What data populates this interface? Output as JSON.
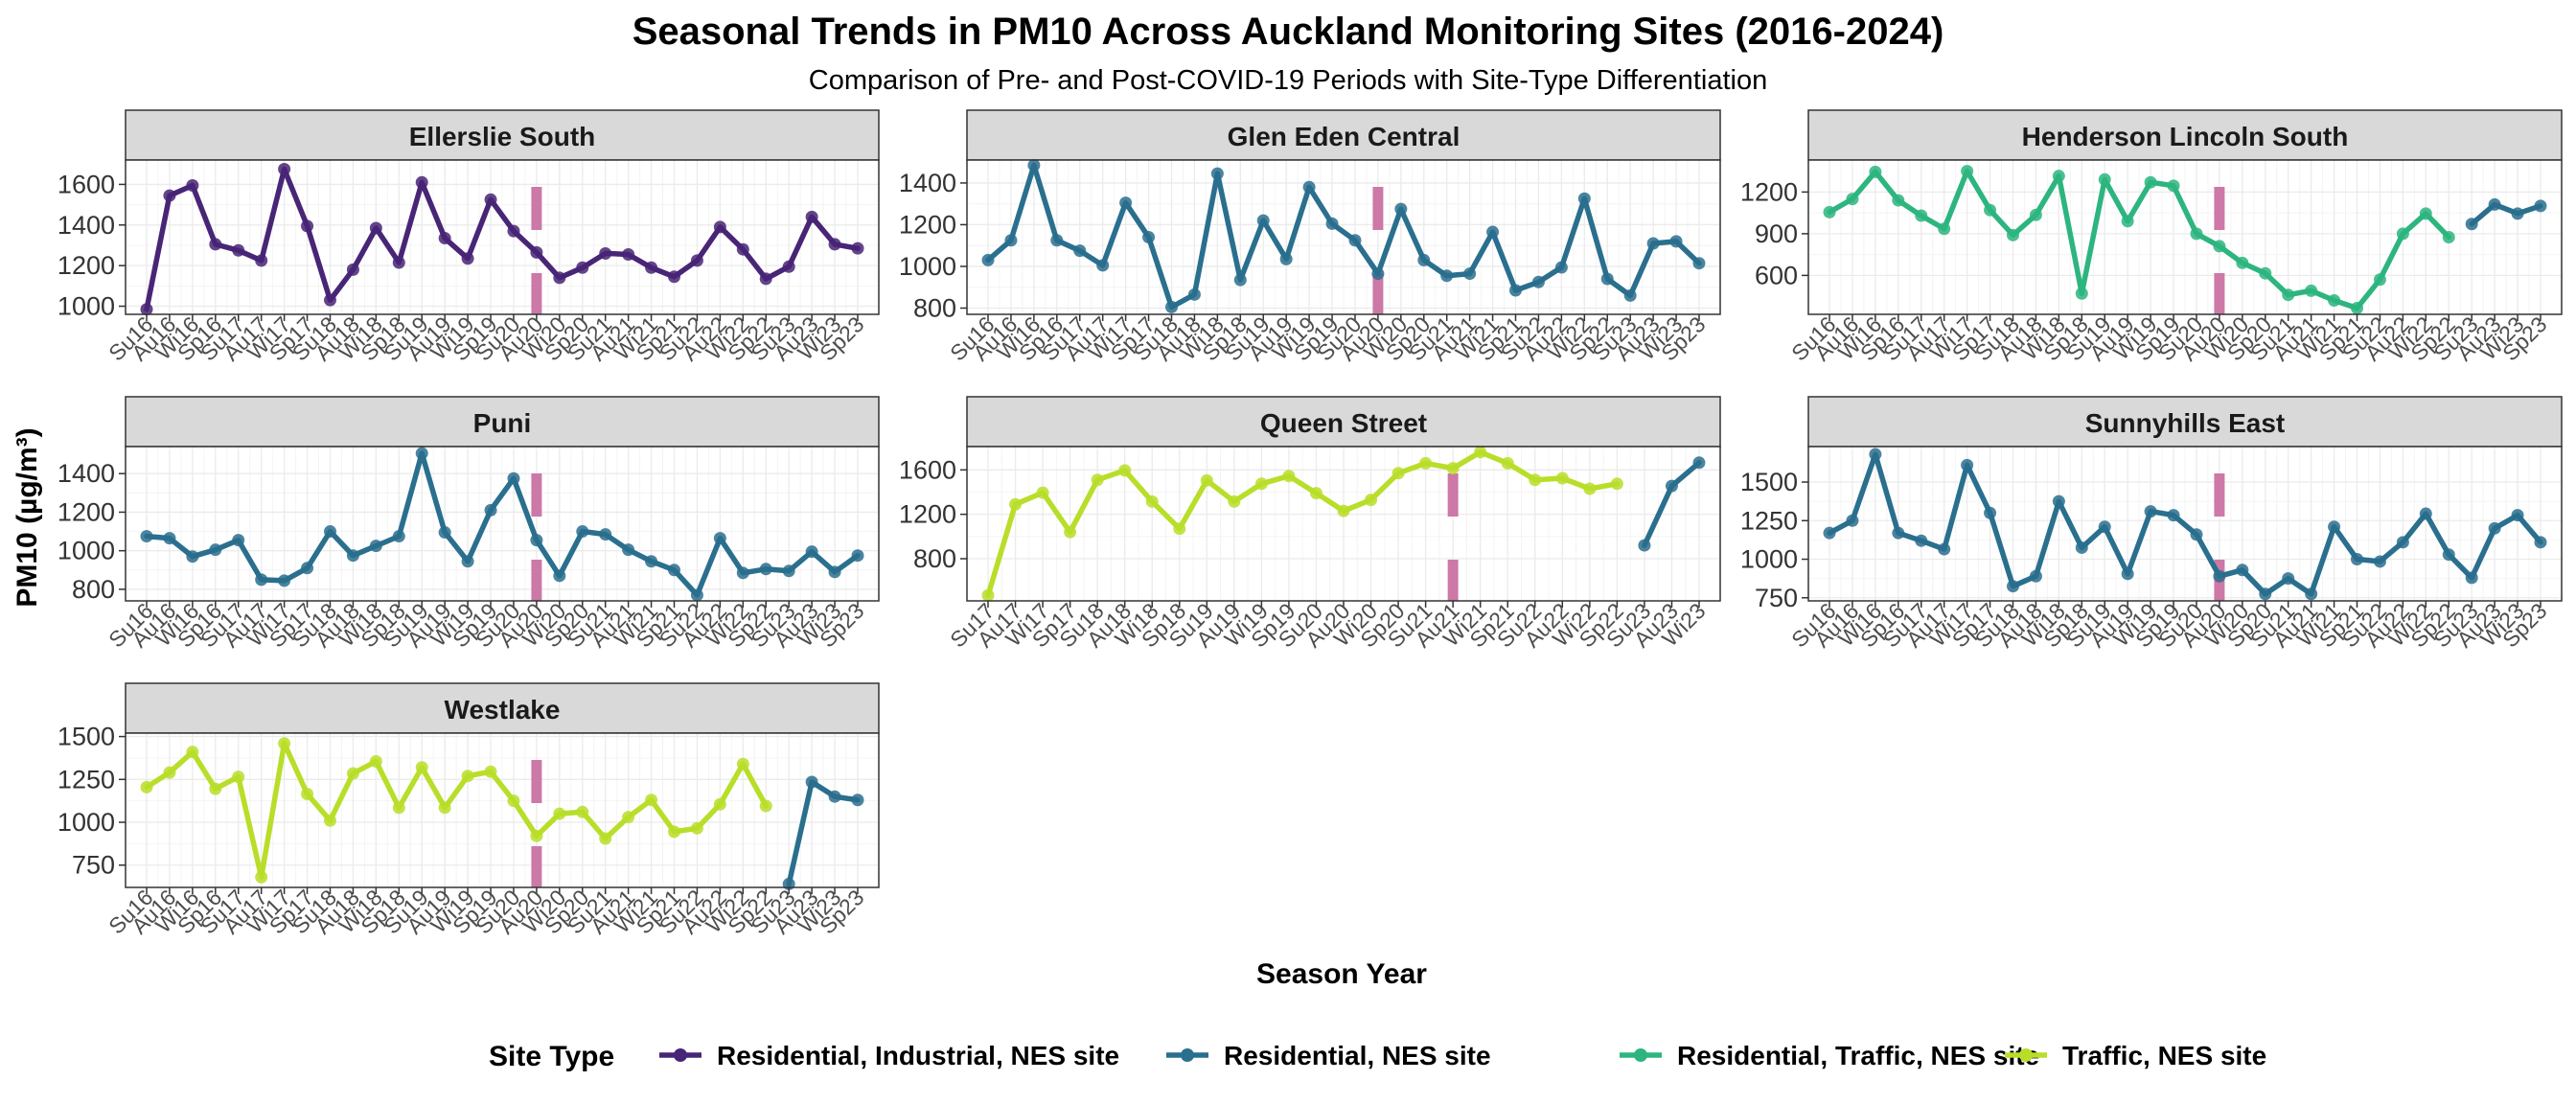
{
  "title": "Seasonal Trends in  PM10  Across Auckland Monitoring Sites (2016-2024)",
  "subtitle": "Comparison of Pre- and Post-COVID-19 Periods with Site-Type Differentiation",
  "xlabel": "Season Year",
  "ylabel": "PM10 (µg/m³)",
  "legend": {
    "title": "Site Type",
    "position": "bottom",
    "entries": [
      {
        "label": "Residential, Industrial, NES site",
        "color": "#482576"
      },
      {
        "label": "Residential, NES site",
        "color": "#2A6F8E"
      },
      {
        "label": "Residential, Traffic, NES site",
        "color": "#2DB57F"
      },
      {
        "label": "Traffic, NES site",
        "color": "#B8DE29"
      }
    ]
  },
  "colors": {
    "Residential, Industrial, NES site": "#482576",
    "Residential, NES site": "#2A6F8E",
    "Residential, Traffic, NES site": "#2DB57F",
    "Traffic, NES site": "#B8DE29",
    "covid_marker": "#CC79A7",
    "strip_bg": "#D9D9D9",
    "grid": "#EBEBEB"
  },
  "chart_data": [
    {
      "type": "line",
      "panel": "Ellerslie South",
      "categories": [
        "Su16",
        "Au16",
        "Wi16",
        "Sp16",
        "Su17",
        "Au17",
        "Wi17",
        "Sp17",
        "Su18",
        "Au18",
        "Wi18",
        "Sp18",
        "Su19",
        "Au19",
        "Wi19",
        "Sp19",
        "Su20",
        "Au20",
        "Wi20",
        "Sp20",
        "Su21",
        "Au21",
        "Wi21",
        "Sp21",
        "Su22",
        "Au22",
        "Wi22",
        "Sp22",
        "Su23",
        "Au23",
        "Wi23",
        "Sp23"
      ],
      "yticks": [
        1000,
        1200,
        1400,
        1600
      ],
      "ylim": [
        960,
        1720
      ],
      "covid_marker": "Au20",
      "series": [
        {
          "site_type": "Residential, Industrial, NES site",
          "values": [
            985,
            1545,
            1595,
            1305,
            1275,
            1225,
            1675,
            1395,
            1030,
            1180,
            1385,
            1215,
            1610,
            1335,
            1235,
            1525,
            1370,
            1265,
            1140,
            1190,
            1260,
            1255,
            1190,
            1145,
            1225,
            1390,
            1280,
            1135,
            1195,
            1440,
            1305,
            1285
          ]
        }
      ]
    },
    {
      "type": "line",
      "panel": "Glen Eden Central",
      "categories": [
        "Su16",
        "Au16",
        "Wi16",
        "Sp16",
        "Su17",
        "Au17",
        "Wi17",
        "Sp17",
        "Su18",
        "Au18",
        "Wi18",
        "Sp18",
        "Su19",
        "Au19",
        "Wi19",
        "Sp19",
        "Su20",
        "Au20",
        "Wi20",
        "Sp20",
        "Su21",
        "Au21",
        "Wi21",
        "Sp21",
        "Su22",
        "Au22",
        "Wi22",
        "Sp22",
        "Su23",
        "Au23",
        "Wi23",
        "Sp23"
      ],
      "yticks": [
        800,
        1000,
        1200,
        1400
      ],
      "ylim": [
        770,
        1510
      ],
      "covid_marker": "Au20",
      "series": [
        {
          "site_type": "Residential, NES site",
          "values": [
            1030,
            1125,
            1485,
            1125,
            1075,
            1005,
            1305,
            1140,
            805,
            865,
            1445,
            935,
            1220,
            1035,
            1380,
            1205,
            1125,
            965,
            1275,
            1030,
            955,
            965,
            1165,
            885,
            925,
            995,
            1325,
            940,
            860,
            1110,
            1120,
            1015
          ]
        }
      ]
    },
    {
      "type": "line",
      "panel": "Henderson Lincoln South",
      "categories": [
        "Su16",
        "Au16",
        "Wi16",
        "Sp16",
        "Su17",
        "Au17",
        "Wi17",
        "Sp17",
        "Su18",
        "Au18",
        "Wi18",
        "Sp18",
        "Su19",
        "Au19",
        "Wi19",
        "Sp19",
        "Su20",
        "Au20",
        "Wi20",
        "Sp20",
        "Su21",
        "Au21",
        "Wi21",
        "Sp21",
        "Su22",
        "Au22",
        "Wi22",
        "Sp22",
        "Su23",
        "Au23",
        "Wi23",
        "Sp23"
      ],
      "yticks": [
        600,
        900,
        1200
      ],
      "ylim": [
        320,
        1430
      ],
      "covid_marker": "Au20",
      "series": [
        {
          "site_type": "Residential, Traffic, NES site",
          "values": [
            1055,
            1150,
            1345,
            1140,
            1030,
            935,
            1350,
            1070,
            890,
            1035,
            1315,
            470,
            1290,
            990,
            1270,
            1245,
            900,
            810,
            690,
            615,
            460,
            490,
            420,
            365,
            570,
            900,
            1045,
            875,
            null,
            null,
            null,
            null
          ]
        },
        {
          "site_type": "Residential, NES site",
          "values": [
            null,
            null,
            null,
            null,
            null,
            null,
            null,
            null,
            null,
            null,
            null,
            null,
            null,
            null,
            null,
            null,
            null,
            null,
            null,
            null,
            null,
            null,
            null,
            null,
            null,
            null,
            null,
            null,
            970,
            1110,
            1045,
            1100
          ]
        }
      ]
    },
    {
      "type": "line",
      "panel": "Puni",
      "categories": [
        "Su16",
        "Au16",
        "Wi16",
        "Sp16",
        "Su17",
        "Au17",
        "Wi17",
        "Sp17",
        "Su18",
        "Au18",
        "Wi18",
        "Sp18",
        "Su19",
        "Au19",
        "Wi19",
        "Sp19",
        "Su20",
        "Au20",
        "Wi20",
        "Sp20",
        "Su21",
        "Au21",
        "Wi21",
        "Sp21",
        "Su22",
        "Au22",
        "Wi22",
        "Sp22",
        "Su23",
        "Au23",
        "Wi23",
        "Sp23"
      ],
      "yticks": [
        800,
        1000,
        1200,
        1400
      ],
      "ylim": [
        740,
        1540
      ],
      "covid_marker": "Au20",
      "series": [
        {
          "site_type": "Residential, NES site",
          "values": [
            1075,
            1065,
            970,
            1005,
            1055,
            850,
            845,
            910,
            1100,
            975,
            1025,
            1075,
            1505,
            1095,
            945,
            1210,
            1375,
            1055,
            870,
            1100,
            1085,
            1005,
            945,
            900,
            770,
            1065,
            885,
            905,
            895,
            995,
            890,
            975
          ]
        }
      ]
    },
    {
      "type": "line",
      "panel": "Queen Street",
      "categories": [
        "Su17",
        "Au17",
        "Wi17",
        "Sp17",
        "Su18",
        "Au18",
        "Wi18",
        "Sp18",
        "Su19",
        "Au19",
        "Wi19",
        "Sp19",
        "Su20",
        "Au20",
        "Wi20",
        "Sp20",
        "Su21",
        "Au21",
        "Wi21",
        "Sp21",
        "Su22",
        "Au22",
        "Wi22",
        "Sp22",
        "Su23",
        "Au23",
        "Wi23"
      ],
      "yticks": [
        800,
        1200,
        1600
      ],
      "ylim": [
        420,
        1810
      ],
      "covid_marker": "Au21",
      "series": [
        {
          "site_type": "Traffic, NES site",
          "values": [
            470,
            1290,
            1395,
            1040,
            1510,
            1595,
            1315,
            1070,
            1505,
            1315,
            1475,
            1545,
            1390,
            1230,
            1330,
            1570,
            1660,
            1615,
            1760,
            1660,
            1510,
            1525,
            1430,
            1475,
            null,
            null,
            null
          ]
        },
        {
          "site_type": "Residential, NES site",
          "values": [
            null,
            null,
            null,
            null,
            null,
            null,
            null,
            null,
            null,
            null,
            null,
            null,
            null,
            null,
            null,
            null,
            null,
            null,
            null,
            null,
            null,
            null,
            null,
            null,
            920,
            1455,
            1665
          ]
        }
      ]
    },
    {
      "type": "line",
      "panel": "Sunnyhills East",
      "categories": [
        "Su16",
        "Au16",
        "Wi16",
        "Sp16",
        "Su17",
        "Au17",
        "Wi17",
        "Sp17",
        "Su18",
        "Au18",
        "Wi18",
        "Sp18",
        "Su19",
        "Au19",
        "Wi19",
        "Sp19",
        "Su20",
        "Au20",
        "Wi20",
        "Sp20",
        "Su21",
        "Au21",
        "Wi21",
        "Sp21",
        "Su22",
        "Au22",
        "Wi22",
        "Sp22",
        "Su23",
        "Au23",
        "Wi23",
        "Sp23"
      ],
      "yticks": [
        750,
        1000,
        1250,
        1500
      ],
      "ylim": [
        730,
        1730
      ],
      "covid_marker": "Au20",
      "series": [
        {
          "site_type": "Residential, NES site",
          "values": [
            1170,
            1250,
            1680,
            1170,
            1120,
            1065,
            1610,
            1300,
            825,
            890,
            1375,
            1075,
            1210,
            905,
            1310,
            1285,
            1160,
            890,
            930,
            775,
            875,
            775,
            1210,
            1000,
            985,
            1110,
            1295,
            1030,
            880,
            1200,
            1285,
            1110
          ]
        }
      ]
    },
    {
      "type": "line",
      "panel": "Westlake",
      "categories": [
        "Su16",
        "Au16",
        "Wi16",
        "Sp16",
        "Su17",
        "Au17",
        "Wi17",
        "Sp17",
        "Su18",
        "Au18",
        "Wi18",
        "Sp18",
        "Su19",
        "Au19",
        "Wi19",
        "Sp19",
        "Su20",
        "Au20",
        "Wi20",
        "Sp20",
        "Su21",
        "Au21",
        "Wi21",
        "Sp21",
        "Su22",
        "Au22",
        "Wi22",
        "Sp22",
        "Su23",
        "Au23",
        "Wi23",
        "Sp23"
      ],
      "yticks": [
        750,
        1000,
        1250,
        1500
      ],
      "ylim": [
        620,
        1520
      ],
      "covid_marker": "Au20",
      "series": [
        {
          "site_type": "Traffic, NES site",
          "values": [
            1205,
            1290,
            1410,
            1195,
            1265,
            680,
            1460,
            1165,
            1010,
            1285,
            1355,
            1085,
            1320,
            1085,
            1270,
            1295,
            1125,
            920,
            1050,
            1060,
            905,
            1030,
            1130,
            945,
            965,
            1105,
            1340,
            1095,
            null,
            null,
            null,
            null
          ]
        },
        {
          "site_type": "Residential, NES site",
          "values": [
            null,
            null,
            null,
            null,
            null,
            null,
            null,
            null,
            null,
            null,
            null,
            null,
            null,
            null,
            null,
            null,
            null,
            null,
            null,
            null,
            null,
            null,
            null,
            null,
            null,
            null,
            null,
            null,
            640,
            1235,
            1150,
            1130
          ]
        }
      ]
    }
  ]
}
